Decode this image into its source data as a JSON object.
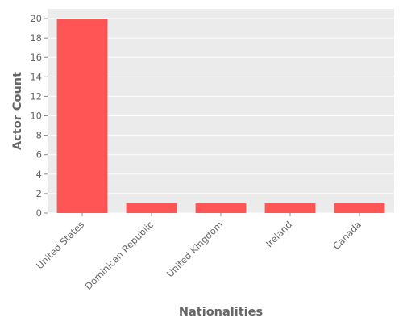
{
  "chart_data": {
    "type": "bar",
    "title": "",
    "xlabel": "Nationalities",
    "ylabel": "Actor Count",
    "categories": [
      "United States",
      "Dominican Republic",
      "United Kingdom",
      "Ireland",
      "Canada"
    ],
    "values": [
      20,
      1,
      1,
      1,
      1
    ],
    "ylim": [
      0,
      21
    ],
    "yticks": [
      0,
      2,
      4,
      6,
      8,
      10,
      12,
      14,
      16,
      18,
      20
    ],
    "grid": true,
    "legend": "none",
    "colors": {
      "bar": "#ff5555",
      "panel_background": "#ebebeb",
      "gridline": "#ffffff",
      "text": "#666666"
    }
  }
}
